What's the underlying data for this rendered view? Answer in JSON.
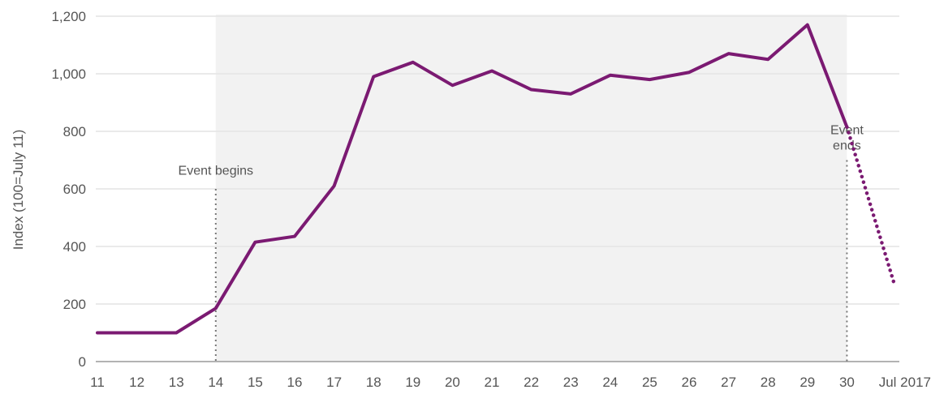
{
  "chart_data": {
    "type": "line",
    "ylabel": "Index (100=July 11)",
    "ylim": [
      0,
      1200
    ],
    "yticks": [
      0,
      200,
      400,
      600,
      800,
      1000,
      1200
    ],
    "ytick_labels": [
      "0",
      "200",
      "400",
      "600",
      "800",
      "1,000",
      "1,200"
    ],
    "x_tick_labels": [
      "11",
      "12",
      "13",
      "14",
      "15",
      "16",
      "17",
      "18",
      "19",
      "20",
      "21",
      "22",
      "23",
      "24",
      "25",
      "26",
      "27",
      "28",
      "29",
      "30",
      "Jul 2017"
    ],
    "series": [
      {
        "x": [
          11,
          12,
          13,
          14,
          15,
          16,
          17,
          18,
          19,
          20,
          21,
          22,
          23,
          24,
          25,
          26,
          27,
          28,
          29,
          30
        ],
        "values": [
          100,
          100,
          100,
          185,
          415,
          435,
          610,
          990,
          1040,
          960,
          1010,
          945,
          930,
          995,
          980,
          1005,
          1070,
          1050,
          1170,
          815
        ],
        "color": "#7b1a72",
        "style": "solid"
      },
      {
        "x": [
          30,
          31.2
        ],
        "values": [
          815,
          270
        ],
        "color": "#7b1a72",
        "style": "dotted"
      }
    ],
    "shaded_region": {
      "x_start": 14,
      "x_end": 30,
      "color": "#f2f2f2"
    },
    "annotations": [
      {
        "text_lines": [
          "Event begins"
        ],
        "x": 14,
        "y": 650
      },
      {
        "text_lines": [
          "Event",
          "ends"
        ],
        "x": 30,
        "y": 790
      }
    ],
    "grid": true,
    "colors": {
      "line": "#7b1a72",
      "grid": "#e4e4e4",
      "axis": "#9a9a9a",
      "text": "#555555",
      "shade": "#f2f2f2"
    }
  }
}
